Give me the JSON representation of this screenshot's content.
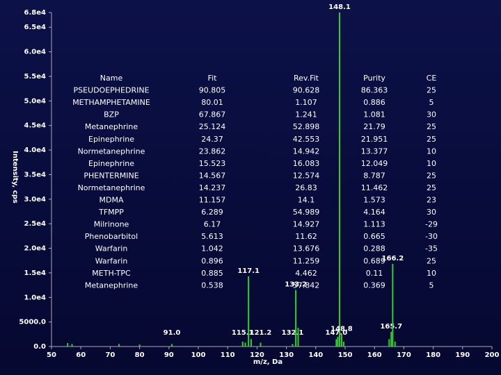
{
  "chart_data": {
    "type": "spectrum",
    "xlabel": "m/z, Da",
    "ylabel": "Intensity, cps",
    "xlim": [
      50,
      200
    ],
    "ylim": [
      0,
      68000
    ],
    "xticks": [
      50,
      60,
      70,
      80,
      90,
      100,
      110,
      120,
      130,
      140,
      150,
      160,
      170,
      180,
      190,
      200
    ],
    "yticks": [
      {
        "value": 0,
        "label": "0.0"
      },
      {
        "value": 5000,
        "label": "5000.0"
      },
      {
        "value": 10000,
        "label": "1.0e4"
      },
      {
        "value": 15000,
        "label": "1.5e4"
      },
      {
        "value": 20000,
        "label": "2.0e4"
      },
      {
        "value": 25000,
        "label": "2.5e4"
      },
      {
        "value": 30000,
        "label": "3.0e4"
      },
      {
        "value": 35000,
        "label": "3.5e4"
      },
      {
        "value": 40000,
        "label": "4.0e4"
      },
      {
        "value": 45000,
        "label": "4.5e4"
      },
      {
        "value": 50000,
        "label": "5.0e4"
      },
      {
        "value": 55000,
        "label": "5.5e4"
      },
      {
        "value": 60000,
        "label": "6.0e4"
      },
      {
        "value": 65000,
        "label": "6.5e4"
      },
      {
        "value": 68000,
        "label": "6.8e4"
      }
    ],
    "color": "#2fd12f",
    "x": [
      55.5,
      57,
      73,
      80,
      91.0,
      115.1,
      116,
      117.1,
      118,
      121.2,
      132.1,
      133.2,
      134,
      147.0,
      147.5,
      148.1,
      148.8,
      149.5,
      165,
      165.7,
      166.2,
      167
    ],
    "values": [
      700,
      500,
      500,
      400,
      500,
      1000,
      800,
      14300,
      1500,
      800,
      500,
      11500,
      3800,
      1500,
      2000,
      68000,
      2500,
      1000,
      1500,
      3000,
      16800,
      1000
    ],
    "peak_labels": [
      null,
      null,
      null,
      null,
      "91.0",
      "115.1",
      null,
      "117.1",
      null,
      "121.2",
      "132.1",
      "133.2",
      null,
      "147.0",
      null,
      "148.1",
      "148.8",
      null,
      null,
      "165.7",
      "166.2",
      null
    ]
  },
  "table": {
    "columns": [
      "Name",
      "Fit",
      "Rev.Fit",
      "Purity",
      "CE"
    ],
    "rows": [
      [
        "PSEUDOEPHEDRINE",
        "90.805",
        "90.628",
        "86.363",
        "25"
      ],
      [
        "METHAMPHETAMINE",
        "80.01",
        "1.107",
        "0.886",
        "5"
      ],
      [
        "BZP",
        "67.867",
        "1.241",
        "1.081",
        "30"
      ],
      [
        "Metanephrine",
        "25.124",
        "52.898",
        "21.79",
        "25"
      ],
      [
        "Epinephrine",
        "24.37",
        "42.553",
        "21.951",
        "25"
      ],
      [
        "Normetanephrine",
        "23.862",
        "14.942",
        "13.377",
        "10"
      ],
      [
        "Epinephrine",
        "15.523",
        "16.083",
        "12.049",
        "10"
      ],
      [
        "PHENTERMINE",
        "14.567",
        "12.574",
        "8.787",
        "25"
      ],
      [
        "Normetanephrine",
        "14.237",
        "26.83",
        "11.462",
        "25"
      ],
      [
        "MDMA",
        "11.157",
        "14.1",
        "1.573",
        "23"
      ],
      [
        "TFMPP",
        "6.289",
        "54.989",
        "4.164",
        "30"
      ],
      [
        "Milrinone",
        "6.17",
        "14.927",
        "1.113",
        "-29"
      ],
      [
        "Phenobarbitol",
        "5.613",
        "11.62",
        "0.665",
        "-30"
      ],
      [
        "Warfarin",
        "1.042",
        "13.676",
        "0.288",
        "-35"
      ],
      [
        "Warfarin",
        "0.896",
        "11.259",
        "0.689",
        "25"
      ],
      [
        "METH-TPC",
        "0.885",
        "4.462",
        "0.11",
        "10"
      ],
      [
        "Metanephrine",
        "0.538",
        "57.842",
        "0.369",
        "5"
      ]
    ]
  }
}
